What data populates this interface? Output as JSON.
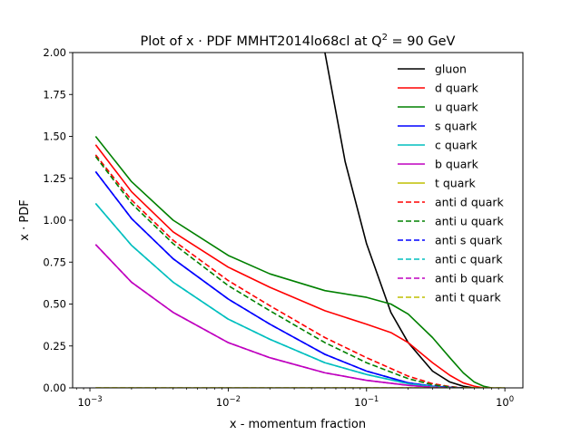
{
  "chart_data": {
    "type": "line",
    "title_main": "Plot of x · PDF MMHT2014lo68cl at Q",
    "title_sup": "2",
    "title_tail": " = 90 GeV",
    "xlabel": "x - momentum fraction",
    "ylabel": "x · PDF",
    "xscale": "log",
    "xlim": [
      0.00075,
      1.35
    ],
    "ylim": [
      0,
      2.0
    ],
    "grid": false,
    "legend_position": "top-right",
    "x_ticks": [
      {
        "value": 0.001,
        "base": "10",
        "exp": "−3"
      },
      {
        "value": 0.01,
        "base": "10",
        "exp": "−2"
      },
      {
        "value": 0.1,
        "base": "10",
        "exp": "−1"
      },
      {
        "value": 1,
        "base": "10",
        "exp": "0"
      }
    ],
    "y_ticks": [
      {
        "value": 0.0,
        "label": "0.00"
      },
      {
        "value": 0.25,
        "label": "0.25"
      },
      {
        "value": 0.5,
        "label": "0.50"
      },
      {
        "value": 0.75,
        "label": "0.75"
      },
      {
        "value": 1.0,
        "label": "1.00"
      },
      {
        "value": 1.25,
        "label": "1.25"
      },
      {
        "value": 1.5,
        "label": "1.50"
      },
      {
        "value": 1.75,
        "label": "1.75"
      },
      {
        "value": 2.0,
        "label": "2.00"
      }
    ],
    "series": [
      {
        "name": "gluon",
        "color": "#000000",
        "dash": false,
        "x": [
          0.05,
          0.07,
          0.1,
          0.15,
          0.2,
          0.3,
          0.4,
          0.5,
          0.6
        ],
        "y": [
          2.0,
          1.35,
          0.86,
          0.45,
          0.27,
          0.1,
          0.035,
          0.01,
          0.0
        ]
      },
      {
        "name": "d quark",
        "color": "#ff0000",
        "dash": false,
        "x": [
          0.0011,
          0.002,
          0.004,
          0.01,
          0.02,
          0.05,
          0.1,
          0.15,
          0.2,
          0.3,
          0.4,
          0.5,
          0.6,
          0.7
        ],
        "y": [
          1.45,
          1.17,
          0.93,
          0.72,
          0.6,
          0.46,
          0.38,
          0.33,
          0.27,
          0.15,
          0.075,
          0.03,
          0.01,
          0.0
        ]
      },
      {
        "name": "u quark",
        "color": "#008000",
        "dash": false,
        "x": [
          0.0011,
          0.002,
          0.004,
          0.01,
          0.02,
          0.05,
          0.1,
          0.15,
          0.2,
          0.3,
          0.4,
          0.5,
          0.6,
          0.7,
          0.8
        ],
        "y": [
          1.5,
          1.23,
          1.0,
          0.79,
          0.68,
          0.58,
          0.54,
          0.5,
          0.44,
          0.3,
          0.18,
          0.09,
          0.035,
          0.01,
          0.0
        ]
      },
      {
        "name": "s quark",
        "color": "#0000ff",
        "dash": false,
        "x": [
          0.0011,
          0.002,
          0.004,
          0.01,
          0.02,
          0.05,
          0.1,
          0.2,
          0.3,
          0.4,
          0.5
        ],
        "y": [
          1.29,
          1.01,
          0.77,
          0.53,
          0.38,
          0.2,
          0.1,
          0.03,
          0.01,
          0.003,
          0.0
        ]
      },
      {
        "name": "c quark",
        "color": "#00bfbf",
        "dash": false,
        "x": [
          0.0011,
          0.002,
          0.004,
          0.01,
          0.02,
          0.05,
          0.1,
          0.2,
          0.3,
          0.4
        ],
        "y": [
          1.1,
          0.85,
          0.63,
          0.41,
          0.29,
          0.15,
          0.08,
          0.025,
          0.008,
          0.0
        ]
      },
      {
        "name": "b quark",
        "color": "#bf00bf",
        "dash": false,
        "x": [
          0.0011,
          0.002,
          0.004,
          0.01,
          0.02,
          0.05,
          0.1,
          0.2,
          0.3,
          0.4
        ],
        "y": [
          0.855,
          0.63,
          0.45,
          0.27,
          0.18,
          0.09,
          0.045,
          0.015,
          0.004,
          0.0
        ]
      },
      {
        "name": "t quark",
        "color": "#bfbf00",
        "dash": false,
        "x": [
          0.0011,
          1.0
        ],
        "y": [
          0.0,
          0.0
        ]
      },
      {
        "name": "anti d quark",
        "color": "#ff0000",
        "dash": true,
        "x": [
          0.0011,
          0.002,
          0.004,
          0.01,
          0.02,
          0.05,
          0.1,
          0.2,
          0.3,
          0.4,
          0.5
        ],
        "y": [
          1.39,
          1.12,
          0.88,
          0.64,
          0.49,
          0.3,
          0.18,
          0.07,
          0.025,
          0.008,
          0.0
        ]
      },
      {
        "name": "anti u quark",
        "color": "#008000",
        "dash": true,
        "x": [
          0.0011,
          0.002,
          0.004,
          0.01,
          0.02,
          0.05,
          0.1,
          0.2,
          0.3,
          0.4,
          0.5
        ],
        "y": [
          1.38,
          1.1,
          0.86,
          0.61,
          0.46,
          0.27,
          0.15,
          0.055,
          0.018,
          0.005,
          0.0
        ]
      },
      {
        "name": "anti s quark",
        "color": "#0000ff",
        "dash": true,
        "x": [
          0.0011,
          0.002,
          0.004,
          0.01,
          0.02,
          0.05,
          0.1,
          0.2,
          0.3,
          0.4,
          0.5
        ],
        "y": [
          1.29,
          1.01,
          0.77,
          0.53,
          0.38,
          0.2,
          0.1,
          0.03,
          0.01,
          0.003,
          0.0
        ]
      },
      {
        "name": "anti c quark",
        "color": "#00bfbf",
        "dash": true,
        "x": [
          0.0011,
          0.002,
          0.004,
          0.01,
          0.02,
          0.05,
          0.1,
          0.2,
          0.3,
          0.4
        ],
        "y": [
          1.1,
          0.85,
          0.63,
          0.41,
          0.29,
          0.15,
          0.08,
          0.025,
          0.008,
          0.0
        ]
      },
      {
        "name": "anti b quark",
        "color": "#bf00bf",
        "dash": true,
        "x": [
          0.0011,
          0.002,
          0.004,
          0.01,
          0.02,
          0.05,
          0.1,
          0.2,
          0.3,
          0.4
        ],
        "y": [
          0.855,
          0.63,
          0.45,
          0.27,
          0.18,
          0.09,
          0.045,
          0.015,
          0.004,
          0.0
        ]
      },
      {
        "name": "anti t quark",
        "color": "#bfbf00",
        "dash": true,
        "x": [
          0.0011,
          1.0
        ],
        "y": [
          0.0,
          0.0
        ]
      }
    ]
  }
}
